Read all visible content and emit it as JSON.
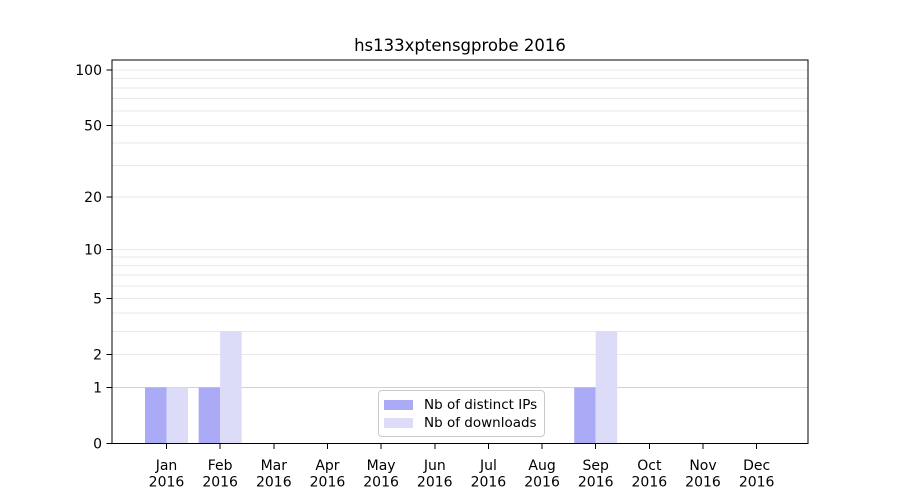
{
  "chart_data": {
    "type": "bar",
    "title": "hs133xptensgprobe 2016",
    "categories": [
      "Jan 2016",
      "Feb 2016",
      "Mar 2016",
      "Apr 2016",
      "May 2016",
      "Jun 2016",
      "Jul 2016",
      "Aug 2016",
      "Sep 2016",
      "Oct 2016",
      "Nov 2016",
      "Dec 2016"
    ],
    "series": [
      {
        "key": "distinct-ips",
        "name": "Nb of distinct IPs",
        "color": "#aaaaf7",
        "values": [
          1,
          1,
          0,
          0,
          0,
          0,
          0,
          0,
          1,
          0,
          0,
          0
        ]
      },
      {
        "key": "downloads",
        "name": "Nb of downloads",
        "color": "#dcdcf9",
        "values": [
          1,
          3,
          0,
          0,
          0,
          0,
          0,
          0,
          3,
          0,
          0,
          0
        ]
      }
    ],
    "y_axis": {
      "scale": "log10(1+x)",
      "tick_values": [
        100,
        50,
        20,
        10,
        5,
        2,
        1,
        0
      ],
      "tick_labels": [
        "100",
        "50",
        "20",
        "10",
        "5",
        "2",
        "1",
        "0"
      ],
      "minor_gridlines": [
        1,
        2,
        3,
        4,
        5,
        6,
        7,
        8,
        9,
        10,
        20,
        30,
        40,
        50,
        60,
        70,
        80,
        90,
        100
      ]
    },
    "legend_position": "bottom-center",
    "grid": true
  },
  "colors": {
    "gridline": "#e9e9e9",
    "gridline_at_one": "#d2d2d2",
    "axis": "#000000"
  }
}
